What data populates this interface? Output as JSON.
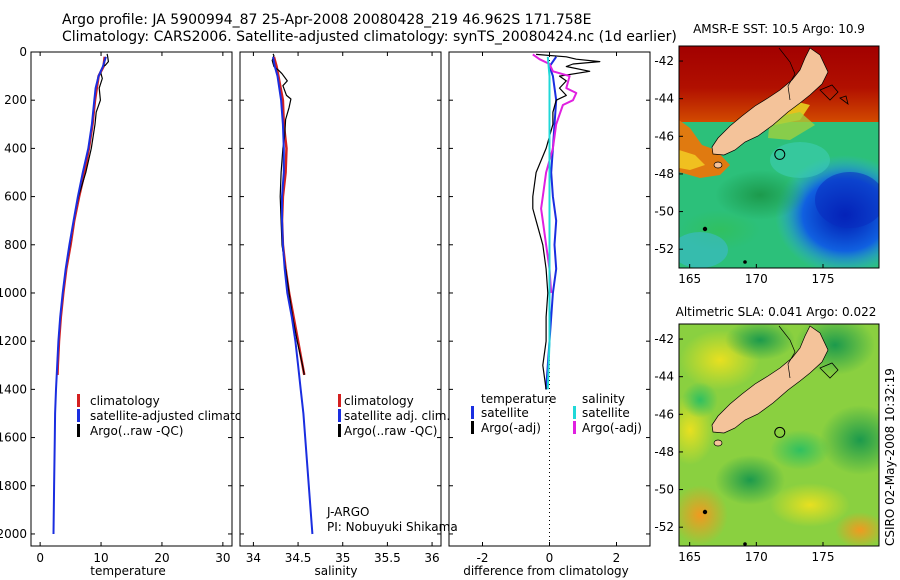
{
  "header": {
    "line1": "Argo profile: JA 5900994_87 25-Apr-2008 20080428_219 46.962S 171.758E",
    "line2": "Climatology: CARS2006. Satellite-adjusted climatology: synTS_20080424.nc (1d earlier)"
  },
  "stamp": "CSIRO 02-May-2008 10:32:19",
  "colors": {
    "climatology": "#d42020",
    "satellite": "#1a2ee0",
    "argo": "#000000",
    "satellite_sal": "#20d8d8",
    "argo_sal_adj": "#e020e0"
  },
  "chart_data": [
    {
      "type": "line",
      "id": "temperature",
      "xlabel": "temperature",
      "xlim": [
        -1.5,
        31.5
      ],
      "ylim": [
        0,
        2050
      ],
      "xticks": [
        0,
        10,
        20,
        30
      ],
      "yticks": [
        0,
        200,
        400,
        600,
        800,
        1000,
        1200,
        1400,
        1600,
        1800,
        2000
      ],
      "legend": [
        "climatology",
        "satellite-adjusted climatology",
        "Argo(..raw -QC)"
      ],
      "series": [
        {
          "name": "climatology",
          "color": "#d42020",
          "width": 2.5,
          "points": [
            [
              10.6,
              20
            ],
            [
              10.4,
              60
            ],
            [
              9.6,
              100
            ],
            [
              9.0,
              200
            ],
            [
              8.6,
              300
            ],
            [
              8.0,
              400
            ],
            [
              7.3,
              500
            ],
            [
              6.4,
              600
            ],
            [
              5.6,
              700
            ],
            [
              5.0,
              800
            ],
            [
              4.3,
              900
            ],
            [
              3.8,
              1000
            ],
            [
              3.4,
              1100
            ],
            [
              3.1,
              1200
            ],
            [
              2.9,
              1300
            ],
            [
              2.85,
              1340
            ]
          ]
        },
        {
          "name": "Argo(..raw -QC)",
          "color": "#000000",
          "width": 1.2,
          "points": [
            [
              11.0,
              8
            ],
            [
              11.1,
              20
            ],
            [
              11.2,
              40
            ],
            [
              10.7,
              55
            ],
            [
              10.3,
              60
            ],
            [
              9.9,
              80
            ],
            [
              10.2,
              110
            ],
            [
              9.7,
              150
            ],
            [
              9.9,
              200
            ],
            [
              9.2,
              250
            ],
            [
              9.0,
              300
            ],
            [
              8.4,
              400
            ],
            [
              7.5,
              500
            ],
            [
              6.3,
              600
            ],
            [
              5.5,
              700
            ],
            [
              4.9,
              800
            ],
            [
              4.2,
              900
            ],
            [
              3.7,
              1000
            ],
            [
              3.3,
              1100
            ],
            [
              3.0,
              1200
            ],
            [
              2.8,
              1300
            ],
            [
              2.75,
              1340
            ]
          ]
        },
        {
          "name": "satellite-adjusted climatology",
          "color": "#1a2ee0",
          "width": 2,
          "points": [
            [
              10.8,
              20
            ],
            [
              10.3,
              60
            ],
            [
              9.6,
              100
            ],
            [
              9.1,
              150
            ],
            [
              8.9,
              200
            ],
            [
              8.5,
              300
            ],
            [
              7.9,
              400
            ],
            [
              7.0,
              500
            ],
            [
              6.2,
              600
            ],
            [
              5.5,
              700
            ],
            [
              4.8,
              800
            ],
            [
              4.2,
              900
            ],
            [
              3.7,
              1000
            ],
            [
              3.3,
              1100
            ],
            [
              3.0,
              1200
            ],
            [
              2.8,
              1300
            ],
            [
              2.6,
              1400
            ],
            [
              2.45,
              1500
            ],
            [
              2.4,
              1600
            ],
            [
              2.3,
              1800
            ],
            [
              2.2,
              2000
            ]
          ]
        }
      ]
    },
    {
      "type": "line",
      "id": "salinity",
      "xlabel": "salinity",
      "xlim": [
        33.85,
        36.1
      ],
      "ylim": [
        0,
        2050
      ],
      "xticks": [
        34,
        34.5,
        35,
        35.5,
        36
      ],
      "yticks": [
        0,
        200,
        400,
        600,
        800,
        1000,
        1200,
        1400,
        1600,
        1800,
        2000
      ],
      "legend": [
        "climatology",
        "satellite adj. clim.",
        "Argo(..raw -QC)"
      ],
      "series": [
        {
          "name": "climatology",
          "color": "#d42020",
          "width": 2.5,
          "points": [
            [
              34.23,
              20
            ],
            [
              34.26,
              60
            ],
            [
              34.28,
              100
            ],
            [
              34.33,
              200
            ],
            [
              34.34,
              300
            ],
            [
              34.37,
              400
            ],
            [
              34.36,
              500
            ],
            [
              34.33,
              600
            ],
            [
              34.32,
              700
            ],
            [
              34.33,
              800
            ],
            [
              34.36,
              900
            ],
            [
              34.4,
              1000
            ],
            [
              34.45,
              1100
            ],
            [
              34.5,
              1200
            ],
            [
              34.55,
              1300
            ],
            [
              34.57,
              1340
            ]
          ]
        },
        {
          "name": "Argo(..raw -QC)",
          "color": "#000000",
          "width": 1.2,
          "points": [
            [
              34.22,
              8
            ],
            [
              34.23,
              15
            ],
            [
              34.21,
              35
            ],
            [
              34.23,
              60
            ],
            [
              34.28,
              75
            ],
            [
              34.32,
              90
            ],
            [
              34.38,
              120
            ],
            [
              34.33,
              140
            ],
            [
              34.37,
              180
            ],
            [
              34.42,
              195
            ],
            [
              34.4,
              230
            ],
            [
              34.36,
              280
            ],
            [
              34.35,
              350
            ],
            [
              34.33,
              400
            ],
            [
              34.31,
              500
            ],
            [
              34.3,
              600
            ],
            [
              34.31,
              700
            ],
            [
              34.32,
              800
            ],
            [
              34.36,
              900
            ],
            [
              34.4,
              1000
            ],
            [
              34.44,
              1100
            ],
            [
              34.49,
              1200
            ],
            [
              34.55,
              1300
            ],
            [
              34.57,
              1340
            ]
          ]
        },
        {
          "name": "satellite adj. clim.",
          "color": "#1a2ee0",
          "width": 2,
          "points": [
            [
              34.22,
              20
            ],
            [
              34.24,
              60
            ],
            [
              34.27,
              100
            ],
            [
              34.31,
              200
            ],
            [
              34.33,
              300
            ],
            [
              34.34,
              400
            ],
            [
              34.34,
              500
            ],
            [
              34.32,
              600
            ],
            [
              34.32,
              700
            ],
            [
              34.33,
              800
            ],
            [
              34.35,
              900
            ],
            [
              34.38,
              1000
            ],
            [
              34.43,
              1100
            ],
            [
              34.47,
              1200
            ],
            [
              34.5,
              1300
            ],
            [
              34.53,
              1400
            ],
            [
              34.56,
              1500
            ],
            [
              34.58,
              1600
            ],
            [
              34.62,
              1800
            ],
            [
              34.66,
              2000
            ]
          ]
        }
      ]
    },
    {
      "type": "line",
      "id": "difference",
      "xlabel": "difference from climatology",
      "xlim": [
        -3.0,
        3.0
      ],
      "ylim": [
        0,
        2050
      ],
      "xticks": [
        -2,
        0,
        2
      ],
      "yticks": [
        0,
        200,
        400,
        600,
        800,
        1000,
        1200,
        1400,
        1600,
        1800,
        2000
      ],
      "legend_headers": [
        "temperature",
        "salinity"
      ],
      "legend": [
        "satellite",
        "Argo(-adj)",
        "satellite",
        "Argo(-adj)"
      ],
      "series": [
        {
          "name": "temperature satellite",
          "color": "#1a2ee0",
          "width": 2,
          "points": [
            [
              0.2,
              20
            ],
            [
              0.0,
              60
            ],
            [
              0.1,
              100
            ],
            [
              0.2,
              200
            ],
            [
              0.15,
              300
            ],
            [
              0.1,
              400
            ],
            [
              0.05,
              500
            ],
            [
              0.1,
              600
            ],
            [
              0.2,
              700
            ],
            [
              0.15,
              800
            ],
            [
              0.2,
              900
            ],
            [
              0.1,
              1000
            ],
            [
              0.05,
              1100
            ],
            [
              0.0,
              1200
            ],
            [
              -0.05,
              1300
            ],
            [
              -0.1,
              1400
            ]
          ]
        },
        {
          "name": "temperature Argo(-adj)",
          "color": "#000000",
          "width": 1.2,
          "points": [
            [
              -0.4,
              10
            ],
            [
              0.5,
              20
            ],
            [
              0.8,
              30
            ],
            [
              1.5,
              40
            ],
            [
              0.7,
              50
            ],
            [
              0.5,
              60
            ],
            [
              1.2,
              80
            ],
            [
              0.3,
              100
            ],
            [
              0.5,
              120
            ],
            [
              0.3,
              150
            ],
            [
              0.5,
              180
            ],
            [
              0.2,
              200
            ],
            [
              0.1,
              250
            ],
            [
              0.1,
              300
            ],
            [
              -0.1,
              400
            ],
            [
              -0.4,
              500
            ],
            [
              -0.5,
              600
            ],
            [
              -0.5,
              650
            ],
            [
              -0.4,
              700
            ],
            [
              -0.2,
              800
            ],
            [
              -0.1,
              900
            ],
            [
              -0.05,
              1000
            ],
            [
              -0.1,
              1100
            ],
            [
              -0.1,
              1200
            ],
            [
              -0.2,
              1300
            ],
            [
              -0.1,
              1400
            ]
          ]
        },
        {
          "name": "salinity Argo(-adj)",
          "color": "#e020e0",
          "width": 2,
          "points": [
            [
              -0.5,
              10
            ],
            [
              -0.3,
              30
            ],
            [
              0.0,
              50
            ],
            [
              0.1,
              80
            ],
            [
              0.6,
              100
            ],
            [
              0.5,
              150
            ],
            [
              0.8,
              170
            ],
            [
              0.7,
              200
            ],
            [
              0.4,
              220
            ],
            [
              0.3,
              260
            ],
            [
              0.2,
              300
            ],
            [
              0.1,
              400
            ],
            [
              -0.1,
              500
            ],
            [
              -0.2,
              600
            ],
            [
              -0.25,
              650
            ],
            [
              -0.2,
              700
            ],
            [
              -0.1,
              800
            ],
            [
              0.0,
              900
            ],
            [
              0.05,
              1000
            ]
          ]
        },
        {
          "name": "salinity satellite",
          "color": "#20d8d8",
          "width": 2,
          "points": [
            [
              -0.05,
              20
            ],
            [
              0.0,
              100
            ],
            [
              0.0,
              200
            ],
            [
              0.0,
              400
            ],
            [
              0.0,
              600
            ],
            [
              0.0,
              800
            ],
            [
              0.0,
              1000
            ],
            [
              0.0,
              1200
            ],
            [
              -0.05,
              1400
            ]
          ]
        }
      ]
    },
    {
      "type": "heatmap",
      "id": "sst_map",
      "title": "AMSR-E SST: 10.5 Argo: 10.9",
      "xlim": [
        164.2,
        179.2
      ],
      "ylim": [
        -53.0,
        -41.2
      ],
      "xticks": [
        165,
        170,
        175
      ],
      "yticks": [
        -42,
        -44,
        -46,
        -48,
        -50,
        -52
      ],
      "float_position": [
        171.758,
        -46.962
      ]
    },
    {
      "type": "heatmap",
      "id": "sla_map",
      "title": "Altimetric SLA: 0.041 Argo: 0.022",
      "xlim": [
        164.2,
        179.2
      ],
      "ylim": [
        -53.0,
        -41.2
      ],
      "xticks": [
        165,
        170,
        175
      ],
      "yticks": [
        -42,
        -44,
        -46,
        -48,
        -50,
        -52
      ],
      "float_position": [
        171.758,
        -46.962
      ]
    }
  ]
}
